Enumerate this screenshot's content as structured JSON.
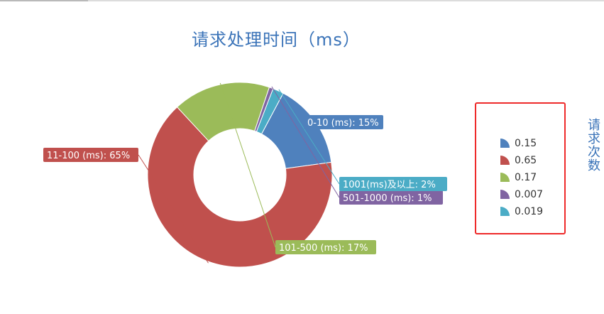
{
  "chart_data": {
    "type": "pie",
    "variant": "donut",
    "title": "请求处理时间（ms）",
    "legend_title": "请求次数",
    "legend_position": "right",
    "slices": [
      {
        "name": "0-10 (ms)",
        "value": 0.15,
        "label": "0-10 (ms): 15%",
        "legend": "0.15",
        "color": "#4f81bd"
      },
      {
        "name": "11-100 (ms)",
        "value": 0.65,
        "label": "11-100 (ms): 65%",
        "legend": "0.65",
        "color": "#c0504d"
      },
      {
        "name": "101-500 (ms)",
        "value": 0.17,
        "label": "101-500 (ms): 17%",
        "legend": "0.17",
        "color": "#9bbb59"
      },
      {
        "name": "501-1000 (ms)",
        "value": 0.007,
        "label": "501-1000 (ms): 1%",
        "legend": "0.007",
        "color": "#8064a2"
      },
      {
        "name": "1001(ms)及以上",
        "value": 0.019,
        "label": "1001(ms)及以上: 2%",
        "legend": "0.019",
        "color": "#4bacc6"
      }
    ]
  }
}
